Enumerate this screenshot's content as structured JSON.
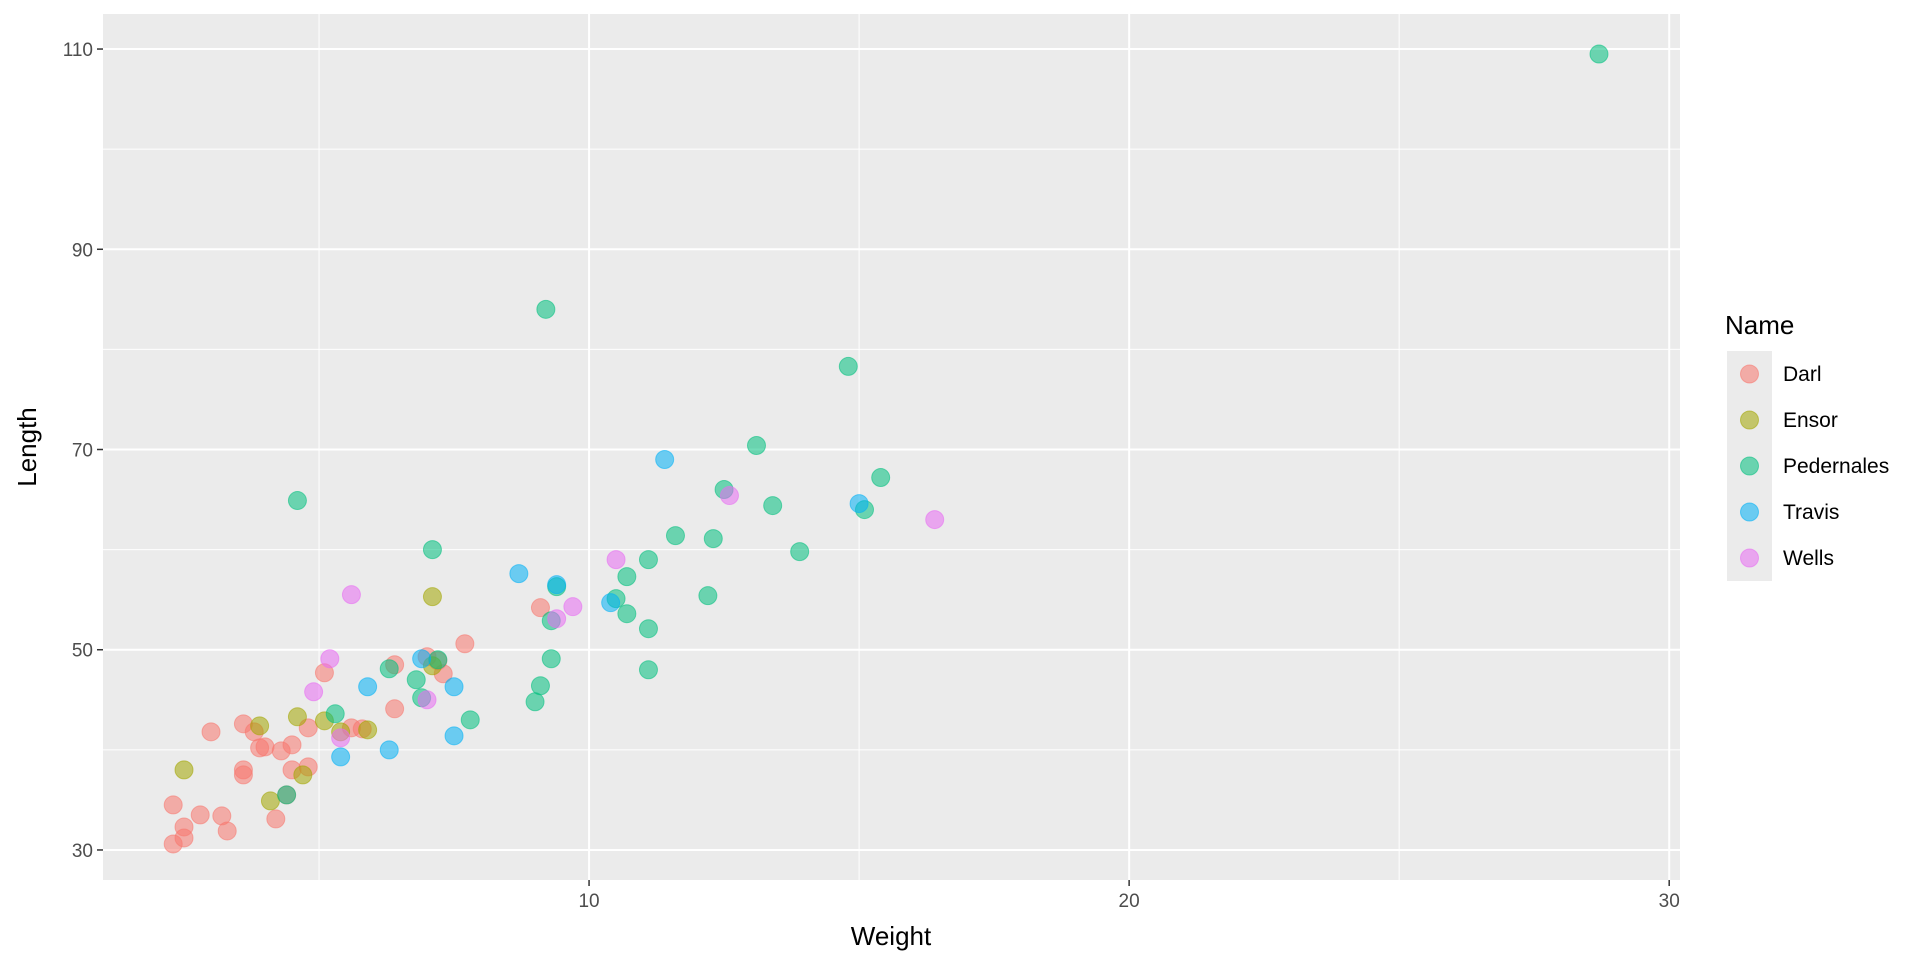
{
  "chart_data": {
    "type": "scatter",
    "xlabel": "Weight",
    "ylabel": "Length",
    "xlim": [
      1,
      30.2
    ],
    "ylim": [
      27,
      113.5
    ],
    "x_ticks": [
      10,
      20,
      30
    ],
    "x_minor_ticks": [
      5,
      15,
      25
    ],
    "y_ticks": [
      30,
      50,
      70,
      90,
      110
    ],
    "y_minor_ticks": [
      40,
      60,
      80,
      100
    ],
    "grid": true,
    "legend_title": "Name",
    "legend_position": "right",
    "series": [
      {
        "name": "Darl",
        "color": "#F8766D",
        "points": [
          [
            2.3,
            30.6
          ],
          [
            2.5,
            31.2
          ],
          [
            2.3,
            34.5
          ],
          [
            2.5,
            32.3
          ],
          [
            2.8,
            33.5
          ],
          [
            3.2,
            33.4
          ],
          [
            3.3,
            31.9
          ],
          [
            3.0,
            41.8
          ],
          [
            3.6,
            42.6
          ],
          [
            3.6,
            38.0
          ],
          [
            3.6,
            37.5
          ],
          [
            3.8,
            41.8
          ],
          [
            3.9,
            40.2
          ],
          [
            4.0,
            40.3
          ],
          [
            4.2,
            33.1
          ],
          [
            4.3,
            39.9
          ],
          [
            4.4,
            35.5
          ],
          [
            4.5,
            38.0
          ],
          [
            4.5,
            40.5
          ],
          [
            4.8,
            38.3
          ],
          [
            4.8,
            42.2
          ],
          [
            5.1,
            47.7
          ],
          [
            5.6,
            42.2
          ],
          [
            5.8,
            42.1
          ],
          [
            6.4,
            44.1
          ],
          [
            6.4,
            48.5
          ],
          [
            7.0,
            49.3
          ],
          [
            7.3,
            47.6
          ],
          [
            7.2,
            48.9
          ],
          [
            7.7,
            50.6
          ],
          [
            9.1,
            54.2
          ]
        ]
      },
      {
        "name": "Ensor",
        "color": "#A3A500",
        "points": [
          [
            2.5,
            38.0
          ],
          [
            3.9,
            42.4
          ],
          [
            4.1,
            34.9
          ],
          [
            4.6,
            43.3
          ],
          [
            4.7,
            37.5
          ],
          [
            5.1,
            42.9
          ],
          [
            5.4,
            41.8
          ],
          [
            5.9,
            42.0
          ],
          [
            7.1,
            48.4
          ],
          [
            7.1,
            55.3
          ]
        ]
      },
      {
        "name": "Pedernales",
        "color": "#00BF7D",
        "points": [
          [
            4.6,
            64.9
          ],
          [
            4.4,
            35.5
          ],
          [
            5.3,
            43.6
          ],
          [
            6.3,
            48.1
          ],
          [
            6.8,
            47.0
          ],
          [
            6.9,
            45.2
          ],
          [
            7.2,
            49.0
          ],
          [
            7.1,
            60.0
          ],
          [
            7.8,
            43.0
          ],
          [
            9.0,
            44.8
          ],
          [
            9.1,
            46.4
          ],
          [
            9.3,
            52.9
          ],
          [
            9.4,
            56.3
          ],
          [
            9.3,
            49.1
          ],
          [
            9.2,
            84.0
          ],
          [
            10.5,
            55.1
          ],
          [
            10.7,
            57.3
          ],
          [
            10.7,
            53.6
          ],
          [
            11.1,
            59.0
          ],
          [
            11.1,
            52.1
          ],
          [
            11.1,
            48.0
          ],
          [
            11.6,
            61.4
          ],
          [
            12.2,
            55.4
          ],
          [
            12.3,
            61.1
          ],
          [
            12.5,
            66.0
          ],
          [
            13.1,
            70.4
          ],
          [
            13.4,
            64.4
          ],
          [
            13.9,
            59.8
          ],
          [
            14.8,
            78.3
          ],
          [
            15.1,
            64.0
          ],
          [
            15.4,
            67.2
          ],
          [
            28.7,
            109.5
          ]
        ]
      },
      {
        "name": "Travis",
        "color": "#00B0F6",
        "points": [
          [
            5.4,
            39.3
          ],
          [
            5.9,
            46.3
          ],
          [
            6.3,
            40.0
          ],
          [
            6.9,
            49.1
          ],
          [
            7.5,
            41.4
          ],
          [
            7.5,
            46.3
          ],
          [
            8.7,
            57.6
          ],
          [
            9.4,
            56.5
          ],
          [
            10.4,
            54.7
          ],
          [
            11.4,
            69.0
          ],
          [
            15.0,
            64.6
          ]
        ]
      },
      {
        "name": "Wells",
        "color": "#E76BF3",
        "points": [
          [
            4.9,
            45.8
          ],
          [
            5.2,
            49.1
          ],
          [
            5.4,
            41.2
          ],
          [
            5.6,
            55.5
          ],
          [
            7.0,
            45.0
          ],
          [
            9.4,
            53.1
          ],
          [
            9.7,
            54.3
          ],
          [
            10.5,
            59.0
          ],
          [
            12.6,
            65.4
          ],
          [
            16.4,
            63.0
          ]
        ]
      }
    ]
  }
}
